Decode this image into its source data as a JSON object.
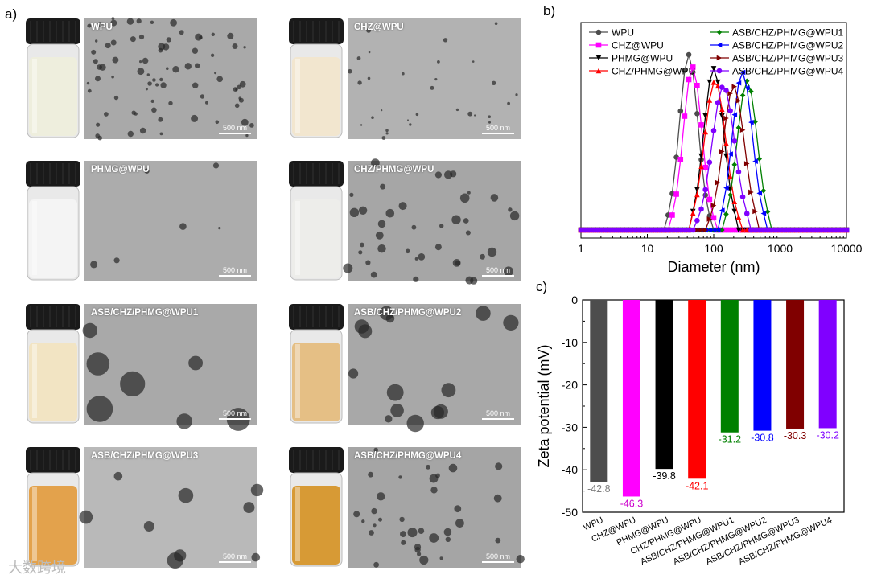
{
  "panels": {
    "a": "a)",
    "b": "b)",
    "c": "c)"
  },
  "tem": [
    {
      "title": "WPU",
      "scale": "500 nm",
      "liquid": "#eeeedd",
      "cap": "#1a1a1a",
      "bg": "#a9a9a9",
      "particles": 80,
      "size": 3
    },
    {
      "title": "CHZ@WPU",
      "scale": "500 nm",
      "liquid": "#f2e6cf",
      "cap": "#1a1a1a",
      "bg": "#b2b2b2",
      "particles": 30,
      "size": 2
    },
    {
      "title": "PHMG@WPU",
      "scale": "500 nm",
      "liquid": "#f4f4f4",
      "cap": "#1a1a1a",
      "bg": "#acacac",
      "particles": 6,
      "size": 3
    },
    {
      "title": "CHZ/PHMG@WPU",
      "scale": "500 nm",
      "liquid": "#ededea",
      "cap": "#1a1a1a",
      "bg": "#a6a6a6",
      "particles": 40,
      "size": 4
    },
    {
      "title": "ASB/CHZ/PHMG@WPU1",
      "scale": "500 nm",
      "liquid": "#f2e4c3",
      "cap": "#1a1a1a",
      "bg": "#a9a9a9",
      "particles": 7,
      "size": 11
    },
    {
      "title": "ASB/CHZ/PHMG@WPU2",
      "scale": "500 nm",
      "liquid": "#e5bf85",
      "cap": "#1a1a1a",
      "bg": "#a8a8a8",
      "particles": 14,
      "size": 8
    },
    {
      "title": "ASB/CHZ/PHMG@WPU3",
      "scale": "500 nm",
      "liquid": "#e3a24c",
      "cap": "#1a1a1a",
      "bg": "#b9b9b9",
      "particles": 9,
      "size": 7
    },
    {
      "title": "ASB/CHZ/PHMG@WPU4",
      "scale": "500 nm",
      "liquid": "#d79a35",
      "cap": "#1a1a1a",
      "bg": "#a5a5a5",
      "particles": 35,
      "size": 4
    }
  ],
  "watermark": "大数跨境",
  "chart_data": [
    {
      "type": "line",
      "xlabel": "Diameter (nm)",
      "xscale": "log",
      "xlim": [
        1,
        10000
      ],
      "xticks": [
        "1",
        "10",
        "100",
        "1000",
        "10000"
      ],
      "legend_position": "top",
      "series": [
        {
          "name": "WPU",
          "color": "#4d4d4d",
          "marker": "circle",
          "peak": 42,
          "width": 0.14,
          "height": 1.0
        },
        {
          "name": "CHZ@WPU",
          "color": "#ff00ff",
          "marker": "square",
          "peak": 48,
          "width": 0.14,
          "height": 0.93
        },
        {
          "name": "PHMG@WPU",
          "color": "#000000",
          "marker": "triangle-down",
          "peak": 100,
          "width": 0.15,
          "height": 0.92
        },
        {
          "name": "CHZ/PHMG@WPU",
          "color": "#ff0000",
          "marker": "triangle-up",
          "peak": 105,
          "width": 0.16,
          "height": 0.85
        },
        {
          "name": "ASB/CHZ/PHMG@WPU1",
          "color": "#008000",
          "marker": "diamond",
          "peak": 320,
          "width": 0.15,
          "height": 0.85
        },
        {
          "name": "ASB/CHZ/PHMG@WPU2",
          "color": "#0000ff",
          "marker": "triangle-left",
          "peak": 270,
          "width": 0.15,
          "height": 0.9
        },
        {
          "name": "ASB/CHZ/PHMG@WPU3",
          "color": "#800000",
          "marker": "triangle-right",
          "peak": 200,
          "width": 0.16,
          "height": 0.82
        },
        {
          "name": "ASB/CHZ/PHMG@WPU4",
          "color": "#8000ff",
          "marker": "circle",
          "peak": 140,
          "width": 0.17,
          "height": 0.82
        }
      ]
    },
    {
      "type": "bar",
      "ylabel": "Zeta potential (mV)",
      "ylim": [
        -50,
        0
      ],
      "yticks": [
        0,
        -10,
        -20,
        -30,
        -40,
        -50
      ],
      "categories": [
        "WPU",
        "CHZ@WPU",
        "PHMG@WPU",
        "CHZ/PHMG@WPU",
        "ASB/CHZ/PHMG@WPU1",
        "ASB/CHZ/PHMG@WPU2",
        "ASB/CHZ/PHMG@WPU3",
        "ASB/CHZ/PHMG@WPU4"
      ],
      "values": [
        -42.8,
        -46.3,
        -39.8,
        -42.1,
        -31.2,
        -30.8,
        -30.3,
        -30.2
      ],
      "value_labels": [
        "-42.8",
        "-46.3",
        "-39.8",
        "-42.1",
        "-31.2",
        "-30.8",
        "-30.3",
        "-30.2"
      ],
      "colors": [
        "#4d4d4d",
        "#ff00ff",
        "#000000",
        "#ff0000",
        "#008000",
        "#0000ff",
        "#800000",
        "#8000ff"
      ],
      "label_colors": [
        "#808080",
        "#cc00cc",
        "#000000",
        "#ff0000",
        "#008000",
        "#0000ff",
        "#800000",
        "#8000ff"
      ]
    }
  ]
}
